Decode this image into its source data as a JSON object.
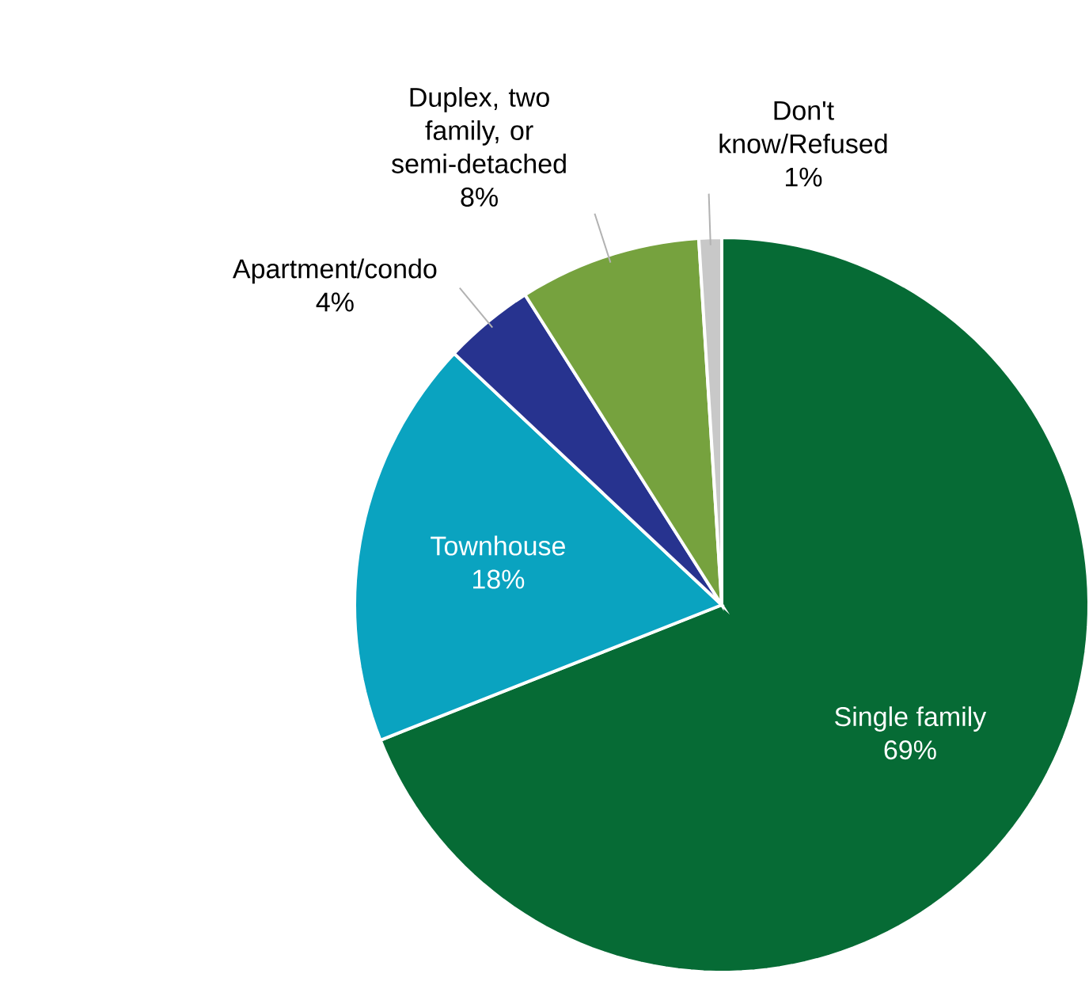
{
  "chart_data": {
    "type": "pie",
    "categories": [
      "Single family",
      "Townhouse",
      "Apartment/condo",
      "Duplex, two family, or semi-detached",
      "Don't know/Refused"
    ],
    "values": [
      69,
      18,
      4,
      8,
      1
    ],
    "value_labels": [
      "69%",
      "18%",
      "4%",
      "8%",
      "1%"
    ],
    "colors": [
      "#066b35",
      "#0aa3c0",
      "#27338f",
      "#76a23e",
      "#c8c8c8"
    ]
  }
}
